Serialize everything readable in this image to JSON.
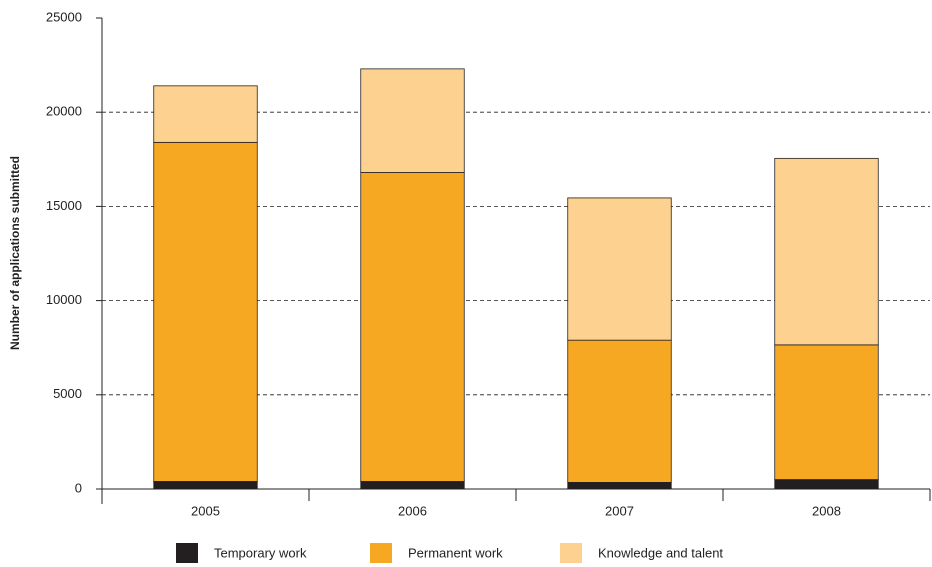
{
  "chart_data": {
    "type": "stacked_bar",
    "y_label": "Number of applications submitted",
    "categories": [
      "2005",
      "2006",
      "2007",
      "2008"
    ],
    "series": [
      {
        "name": "Temporary work",
        "color": "#231f20",
        "values": [
          400,
          400,
          350,
          500
        ]
      },
      {
        "name": "Permanent work",
        "color": "#f7a823",
        "values": [
          18000,
          16400,
          7550,
          7150
        ]
      },
      {
        "name": "Knowledge and talent",
        "color": "#fdd291",
        "values": [
          3000,
          5500,
          7550,
          9900
        ]
      }
    ],
    "ylim": [
      0,
      25000
    ],
    "yticks": [
      0,
      5000,
      10000,
      15000,
      20000,
      25000
    ],
    "grid": true,
    "legend": "bottom"
  }
}
